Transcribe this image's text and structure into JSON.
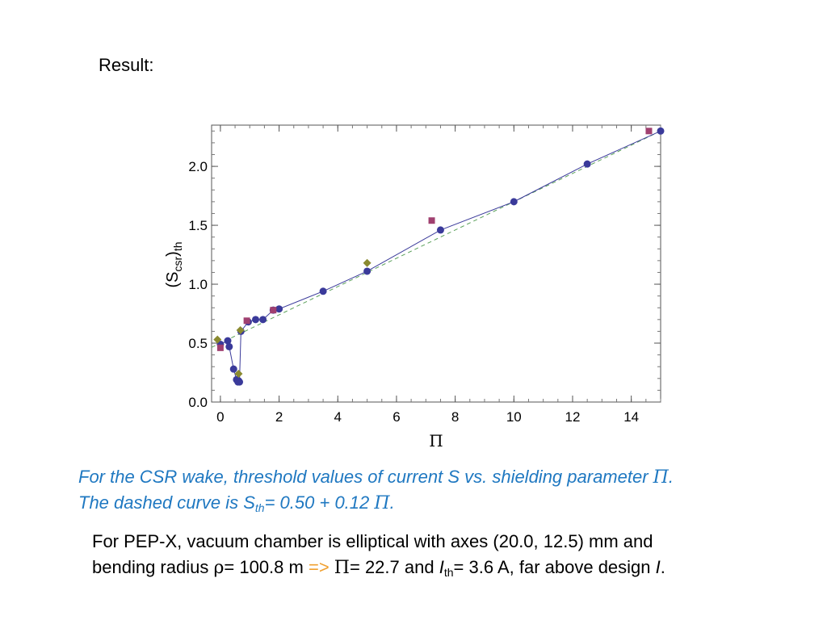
{
  "heading": "Result:",
  "chart_data": {
    "type": "scatter",
    "xlabel": "Π",
    "ylabel_main": "(S",
    "ylabel_sub": "csr",
    "ylabel_close": ")",
    "ylabel_sub2": "th",
    "xlim": [
      -0.3,
      15.0
    ],
    "ylim": [
      0.0,
      2.35
    ],
    "xticks": [
      0,
      2,
      4,
      6,
      8,
      10,
      12,
      14
    ],
    "xtick_labels": [
      "0",
      "2",
      "4",
      "6",
      "8",
      "10",
      "12",
      "14"
    ],
    "yticks": [
      0.0,
      0.5,
      1.0,
      1.5,
      2.0
    ],
    "ytick_labels": [
      "0.0",
      "0.5",
      "1.0",
      "1.5",
      "2.0"
    ],
    "grid": false,
    "fit_line": {
      "intercept": 0.5,
      "slope": 0.12,
      "style": "dashed",
      "color": "#5aa05a"
    },
    "series": [
      {
        "marker": "circle",
        "color": "#3a3a9a",
        "connected": true,
        "x": [
          0.0,
          0.25,
          0.3,
          0.45,
          0.55,
          0.6,
          0.62,
          0.65,
          0.7,
          0.95,
          1.2,
          1.45,
          1.8,
          2.0,
          3.5,
          5.0,
          7.5,
          10.0,
          12.5,
          15.0
        ],
        "y": [
          0.49,
          0.52,
          0.47,
          0.28,
          0.19,
          0.17,
          0.18,
          0.17,
          0.6,
          0.68,
          0.7,
          0.7,
          0.78,
          0.79,
          0.94,
          1.11,
          1.46,
          1.7,
          2.02,
          2.3
        ]
      },
      {
        "marker": "square",
        "color": "#a04070",
        "connected": false,
        "x": [
          0.0,
          0.9,
          1.8,
          7.2,
          14.6
        ],
        "y": [
          0.46,
          0.69,
          0.78,
          1.54,
          2.3
        ]
      },
      {
        "marker": "diamond",
        "color": "#8a8a30",
        "connected": false,
        "x": [
          -0.1,
          0.62,
          0.68,
          5.0
        ],
        "y": [
          0.53,
          0.24,
          0.61,
          1.18
        ]
      }
    ]
  },
  "caption": {
    "line1_text": "For the CSR wake, threshold values of current S vs. shielding parameter ",
    "pi": "Π",
    "period": ".",
    "line2_a": "The dashed curve is S",
    "line2_sub": "th",
    "line2_b": "= 0.50 + 0.12 "
  },
  "note": {
    "line1": "For PEP-X, vacuum chamber is elliptical with axes (20.0, 12.5) mm and",
    "line2_a": "bending radius ",
    "rho": "ρ",
    "line2_b": "= 100.8 m ",
    "arrow": "=>",
    "pi": "Π",
    "line2_c": "= 22.7 and ",
    "I": "I",
    "I_sub": "th",
    "line2_d": "= 3.6 A, far above design ",
    "I2": "I",
    "end": "."
  }
}
